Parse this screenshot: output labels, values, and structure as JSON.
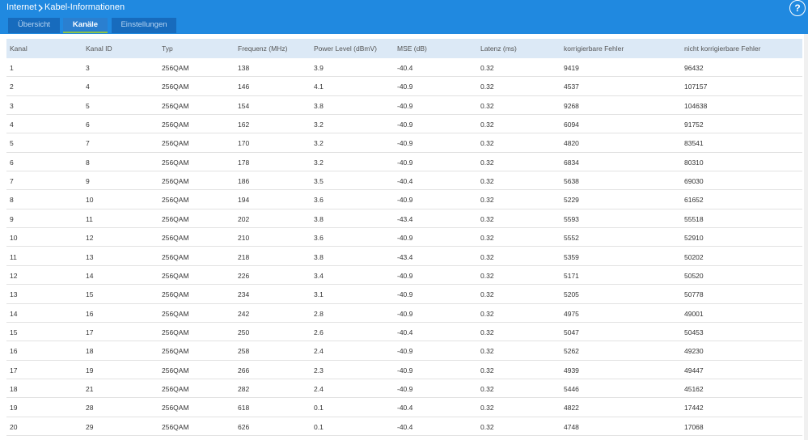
{
  "header": {
    "breadcrumb": [
      "Internet",
      "Kabel-Informationen"
    ],
    "help_icon": "?"
  },
  "tabs": [
    {
      "label": "Übersicht",
      "active": false
    },
    {
      "label": "Kanäle",
      "active": true
    },
    {
      "label": "Einstellungen",
      "active": false
    }
  ],
  "table": {
    "header": [
      "Kanal",
      "Kanal ID",
      "Typ",
      "Frequenz (MHz)",
      "Power Level (dBmV)",
      "MSE (dB)",
      "Latenz (ms)",
      "korrigierbare Fehler",
      "nicht korrigierbare Fehler"
    ],
    "rows": [
      [
        1,
        3,
        "256QAM",
        138,
        3.9,
        -40.4,
        0.32,
        9419,
        96432
      ],
      [
        2,
        4,
        "256QAM",
        146,
        4.1,
        -40.9,
        0.32,
        4537,
        107157
      ],
      [
        3,
        5,
        "256QAM",
        154,
        3.8,
        -40.9,
        0.32,
        9268,
        104638
      ],
      [
        4,
        6,
        "256QAM",
        162,
        3.2,
        -40.9,
        0.32,
        6094,
        91752
      ],
      [
        5,
        7,
        "256QAM",
        170,
        3.2,
        -40.9,
        0.32,
        4820,
        83541
      ],
      [
        6,
        8,
        "256QAM",
        178,
        3.2,
        -40.9,
        0.32,
        6834,
        80310
      ],
      [
        7,
        9,
        "256QAM",
        186,
        3.5,
        -40.4,
        0.32,
        5638,
        69030
      ],
      [
        8,
        10,
        "256QAM",
        194,
        3.6,
        -40.9,
        0.32,
        5229,
        61652
      ],
      [
        9,
        11,
        "256QAM",
        202,
        3.8,
        -43.4,
        0.32,
        5593,
        55518
      ],
      [
        10,
        12,
        "256QAM",
        210,
        3.6,
        -40.9,
        0.32,
        5552,
        52910
      ],
      [
        11,
        13,
        "256QAM",
        218,
        3.8,
        -43.4,
        0.32,
        5359,
        50202
      ],
      [
        12,
        14,
        "256QAM",
        226,
        3.4,
        -40.9,
        0.32,
        5171,
        50520
      ],
      [
        13,
        15,
        "256QAM",
        234,
        3.1,
        -40.9,
        0.32,
        5205,
        50778
      ],
      [
        14,
        16,
        "256QAM",
        242,
        2.8,
        -40.9,
        0.32,
        4975,
        49001
      ],
      [
        15,
        17,
        "256QAM",
        250,
        2.6,
        -40.4,
        0.32,
        5047,
        50453
      ],
      [
        16,
        18,
        "256QAM",
        258,
        2.4,
        -40.9,
        0.32,
        5262,
        49230
      ],
      [
        17,
        19,
        "256QAM",
        266,
        2.3,
        -40.9,
        0.32,
        4939,
        49447
      ],
      [
        18,
        21,
        "256QAM",
        282,
        2.4,
        -40.9,
        0.32,
        5446,
        45162
      ],
      [
        19,
        28,
        "256QAM",
        618,
        0.1,
        -40.4,
        0.32,
        4822,
        17442
      ],
      [
        20,
        29,
        "256QAM",
        626,
        0.1,
        -40.4,
        0.32,
        4748,
        17068
      ]
    ]
  }
}
